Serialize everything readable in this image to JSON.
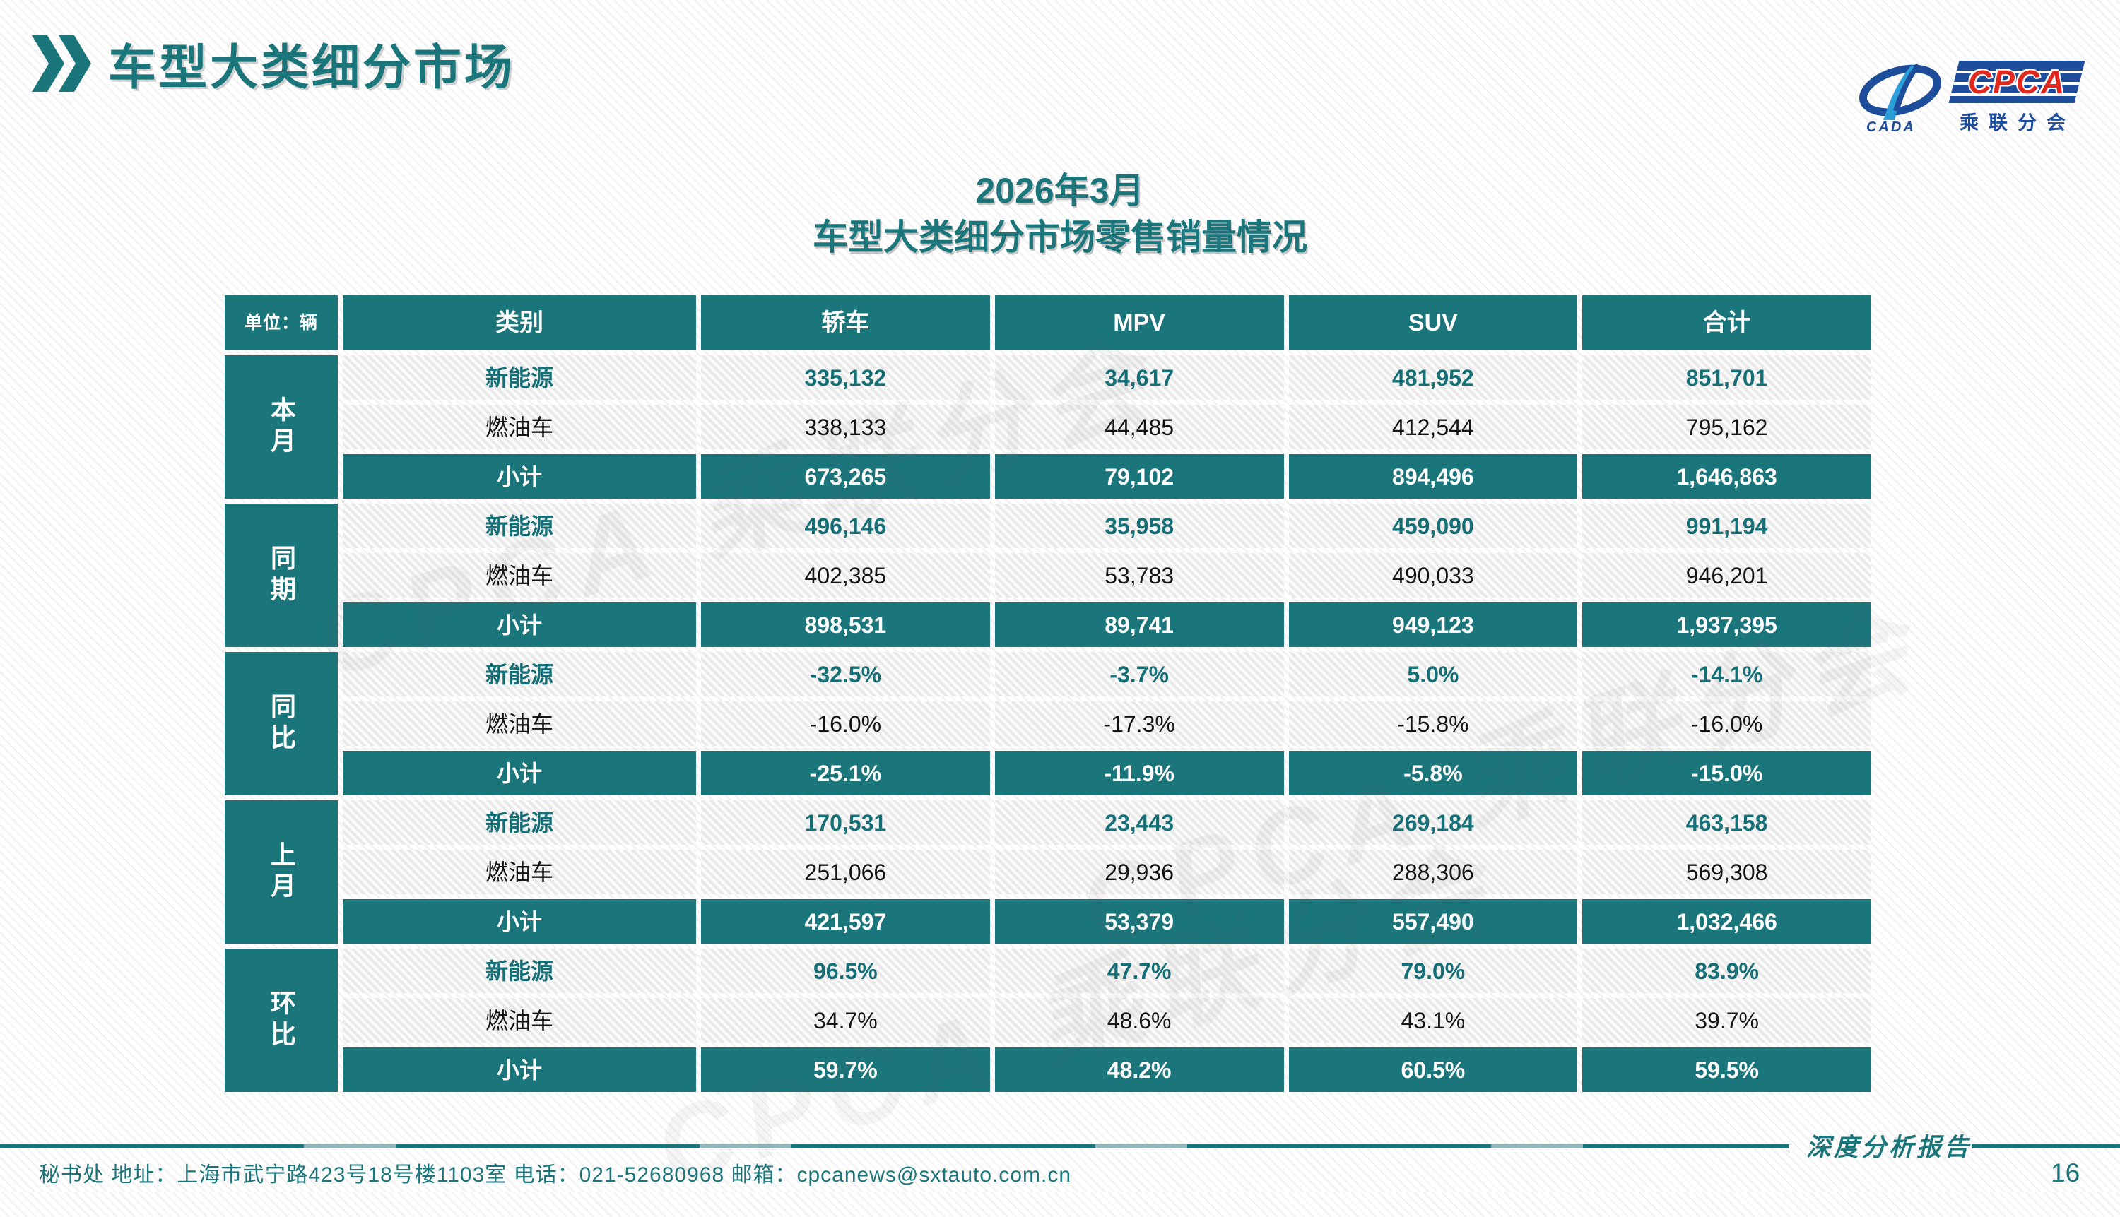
{
  "header": {
    "title": "车型大类细分市场",
    "chevron_icon": "double-chevron-right"
  },
  "logo": {
    "cpca": "CPCA",
    "cada": "CADA",
    "subtitle": "乘联分会"
  },
  "titles": {
    "line1": "2026年3月",
    "line2": "车型大类细分市场零售销量情况"
  },
  "watermark_text": "CPCA 乘联分会",
  "table": {
    "unit_label": "单位：辆",
    "columns": [
      "类别",
      "轿车",
      "MPV",
      "SUV",
      "合计"
    ],
    "groups": [
      {
        "label": "本月",
        "rows": [
          {
            "category": "新能源",
            "style": "nev",
            "values": [
              "335,132",
              "34,617",
              "481,952",
              "851,701"
            ]
          },
          {
            "category": "燃油车",
            "style": "fuel",
            "values": [
              "338,133",
              "44,485",
              "412,544",
              "795,162"
            ]
          },
          {
            "category": "小计",
            "style": "subtotal",
            "values": [
              "673,265",
              "79,102",
              "894,496",
              "1,646,863"
            ]
          }
        ]
      },
      {
        "label": "同期",
        "rows": [
          {
            "category": "新能源",
            "style": "nev",
            "values": [
              "496,146",
              "35,958",
              "459,090",
              "991,194"
            ]
          },
          {
            "category": "燃油车",
            "style": "fuel",
            "values": [
              "402,385",
              "53,783",
              "490,033",
              "946,201"
            ]
          },
          {
            "category": "小计",
            "style": "subtotal",
            "values": [
              "898,531",
              "89,741",
              "949,123",
              "1,937,395"
            ]
          }
        ]
      },
      {
        "label": "同比",
        "rows": [
          {
            "category": "新能源",
            "style": "nev",
            "values": [
              "-32.5%",
              "-3.7%",
              "5.0%",
              "-14.1%"
            ]
          },
          {
            "category": "燃油车",
            "style": "fuel",
            "values": [
              "-16.0%",
              "-17.3%",
              "-15.8%",
              "-16.0%"
            ]
          },
          {
            "category": "小计",
            "style": "subtotal",
            "values": [
              "-25.1%",
              "-11.9%",
              "-5.8%",
              "-15.0%"
            ]
          }
        ]
      },
      {
        "label": "上月",
        "rows": [
          {
            "category": "新能源",
            "style": "nev",
            "values": [
              "170,531",
              "23,443",
              "269,184",
              "463,158"
            ]
          },
          {
            "category": "燃油车",
            "style": "fuel",
            "values": [
              "251,066",
              "29,936",
              "288,306",
              "569,308"
            ]
          },
          {
            "category": "小计",
            "style": "subtotal",
            "values": [
              "421,597",
              "53,379",
              "557,490",
              "1,032,466"
            ]
          }
        ]
      },
      {
        "label": "环比",
        "rows": [
          {
            "category": "新能源",
            "style": "nev",
            "values": [
              "96.5%",
              "47.7%",
              "79.0%",
              "83.9%"
            ]
          },
          {
            "category": "燃油车",
            "style": "fuel",
            "values": [
              "34.7%",
              "48.6%",
              "43.1%",
              "39.7%"
            ]
          },
          {
            "category": "小计",
            "style": "subtotal",
            "values": [
              "59.7%",
              "48.2%",
              "60.5%",
              "59.5%"
            ]
          }
        ]
      }
    ]
  },
  "footer": {
    "left_text": "秘书处   地址：上海市武宁路423号18号楼1103室 电话：021-52680968   邮箱：cpcanews@sxtauto.com.cn",
    "report_label": "深度分析报告",
    "page_number": "16"
  },
  "colors": {
    "accent_teal": "#1b767c",
    "nev_text_teal": "#156f76",
    "logo_blue": "#1e4e9b",
    "logo_red": "#e0281e"
  }
}
